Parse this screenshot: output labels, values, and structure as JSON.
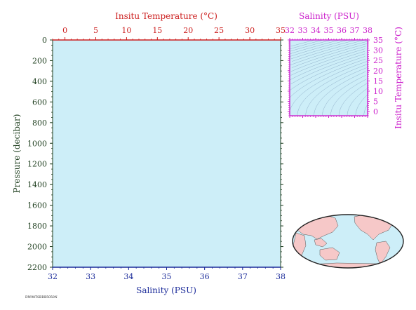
{
  "colors": {
    "plot_bg": "#cdeef8",
    "temp": "#cc1f1f",
    "salinity": "#1a2a99",
    "pressure": "#1f3f1f",
    "ts": "#cc22cc",
    "land": "#f6c8c8",
    "ocean": "#cdeef8"
  },
  "footer_code": "DW98TSBDB5050N",
  "chart_data": [
    {
      "type": "line",
      "series": [],
      "ylabel": "Pressure (decibar)",
      "yticks": [
        "0",
        "200",
        "400",
        "600",
        "800",
        "1000",
        "1200",
        "1400",
        "1600",
        "1800",
        "2000",
        "2200"
      ],
      "ylim": [
        2200,
        0
      ],
      "top_axis": {
        "label": "Insitu Temperature (°C)",
        "ticks": [
          "0",
          "5",
          "10",
          "15",
          "20",
          "25",
          "30",
          "35"
        ],
        "range": [
          -2,
          35
        ]
      },
      "bottom_axis": {
        "label": "Salinity (PSU)",
        "ticks": [
          "32",
          "33",
          "34",
          "35",
          "36",
          "37",
          "38"
        ],
        "range": [
          32,
          38
        ]
      }
    },
    {
      "type": "scatter",
      "series": [],
      "xlabel": "Salinity (PSU)",
      "xticks": [
        "32",
        "33",
        "34",
        "35",
        "36",
        "37",
        "38"
      ],
      "xlim": [
        32,
        38
      ],
      "ylabel": "Insitu Temperature (°C)",
      "yticks": [
        "0",
        "5",
        "10",
        "15",
        "20",
        "25",
        "30",
        "35"
      ],
      "ylim": [
        -2,
        35
      ],
      "density_contours": true
    }
  ]
}
